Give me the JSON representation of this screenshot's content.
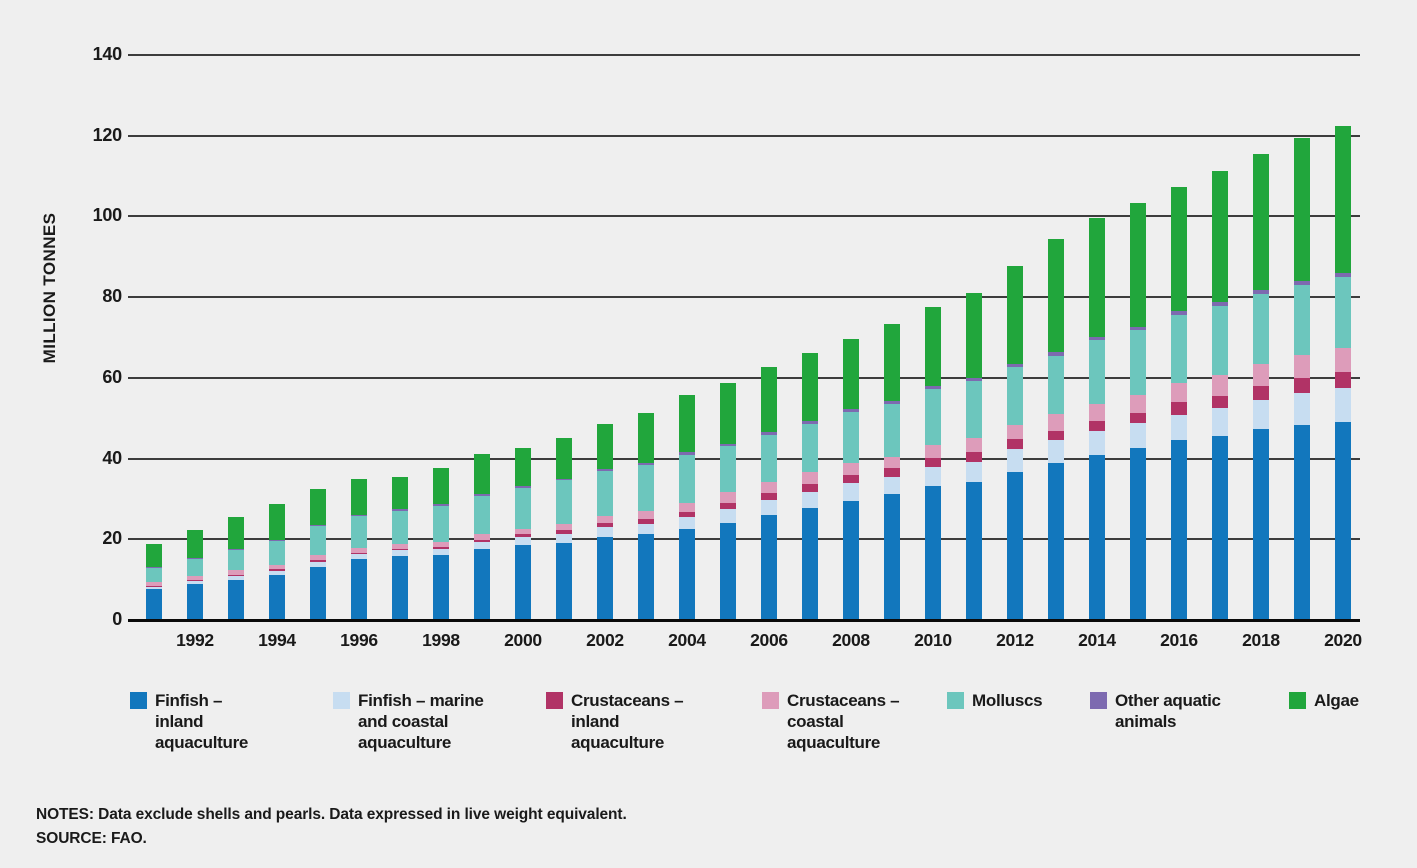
{
  "chart_data": {
    "type": "bar",
    "stacked": true,
    "title": "",
    "xlabel": "",
    "ylabel": "MILLION TONNES",
    "ylim": [
      0,
      140
    ],
    "yticks": [
      0,
      20,
      40,
      60,
      80,
      100,
      120,
      140
    ],
    "grid": "horizontal",
    "legend_position": "bottom",
    "categories": [
      1991,
      1992,
      1993,
      1994,
      1995,
      1996,
      1997,
      1998,
      1999,
      2000,
      2001,
      2002,
      2003,
      2004,
      2005,
      2006,
      2007,
      2008,
      2009,
      2010,
      2011,
      2012,
      2013,
      2014,
      2015,
      2016,
      2017,
      2018,
      2019,
      2020
    ],
    "xtick_labels": [
      "1992",
      "1994",
      "1996",
      "1998",
      "2000",
      "2002",
      "2004",
      "2006",
      "2008",
      "2010",
      "2012",
      "2014",
      "2016",
      "2018",
      "2020"
    ],
    "series": [
      {
        "name": "Finfish – inland aquaculture",
        "legend_label": "Finfish –\ninland\naquaculture",
        "color": "#1277bd",
        "values": [
          7.6,
          8.8,
          10.0,
          11.2,
          13.2,
          15.0,
          15.8,
          16.2,
          17.5,
          18.6,
          19.0,
          20.5,
          21.2,
          22.6,
          24.1,
          26.0,
          27.7,
          29.6,
          31.1,
          33.3,
          34.1,
          36.6,
          39.0,
          41.0,
          42.5,
          44.5,
          45.7,
          47.3,
          48.3,
          49.1
        ]
      },
      {
        "name": "Finfish – marine and coastal aquaculture",
        "legend_label": "Finfish – marine\nand coastal\naquaculture",
        "color": "#c7ddf1",
        "values": [
          0.7,
          0.8,
          0.9,
          1.0,
          1.2,
          1.3,
          1.5,
          1.4,
          1.8,
          1.9,
          2.3,
          2.5,
          2.7,
          2.9,
          3.3,
          3.7,
          4.0,
          4.4,
          4.3,
          4.7,
          5.1,
          5.7,
          5.5,
          5.9,
          6.3,
          6.4,
          6.8,
          7.2,
          7.9,
          8.3
        ]
      },
      {
        "name": "Crustaceans – inland aquaculture",
        "legend_label": "Crustaceans –\ninland\naquaculture",
        "color": "#b13366",
        "values": [
          0.2,
          0.25,
          0.3,
          0.35,
          0.4,
          0.4,
          0.4,
          0.4,
          0.5,
          0.7,
          1.0,
          1.0,
          1.2,
          1.3,
          1.5,
          1.8,
          2.1,
          2.0,
          2.3,
          2.2,
          2.4,
          2.5,
          2.4,
          2.5,
          2.6,
          3.0,
          3.1,
          3.5,
          3.7,
          4.0
        ]
      },
      {
        "name": "Crustaceans – coastal aquaculture",
        "legend_label": "Crustaceans –\ncoastal\naquaculture",
        "color": "#dd9cba",
        "values": [
          0.9,
          1.0,
          1.1,
          1.1,
          1.2,
          1.2,
          1.2,
          1.3,
          1.4,
          1.4,
          1.6,
          1.7,
          1.9,
          2.3,
          2.9,
          2.7,
          2.8,
          2.8,
          2.7,
          3.1,
          3.4,
          3.5,
          4.1,
          4.0,
          4.3,
          4.8,
          5.2,
          5.5,
          5.7,
          6.0
        ]
      },
      {
        "name": "Molluscs",
        "legend_label": "Molluscs",
        "color": "#6cc6bd",
        "values": [
          3.7,
          4.5,
          5.1,
          6.0,
          7.2,
          7.8,
          8.2,
          9.0,
          9.6,
          10.1,
          10.7,
          11.2,
          11.3,
          11.9,
          11.2,
          11.7,
          12.0,
          12.8,
          13.1,
          14.0,
          14.1,
          14.3,
          14.5,
          15.9,
          16.1,
          16.8,
          17.0,
          17.3,
          17.4,
          17.6
        ]
      },
      {
        "name": "Other aquatic animals",
        "legend_label": "Other aquatic\nanimals",
        "color": "#7d6ab0",
        "values": [
          0.1,
          0.1,
          0.15,
          0.2,
          0.25,
          0.3,
          0.3,
          0.35,
          0.4,
          0.4,
          0.4,
          0.4,
          0.5,
          0.6,
          0.7,
          0.7,
          0.7,
          0.7,
          0.7,
          0.6,
          0.8,
          0.8,
          0.9,
          0.8,
          0.8,
          1.0,
          1.0,
          1.0,
          1.0,
          1.1
        ]
      },
      {
        "name": "Algae",
        "legend_label": "Algae",
        "color": "#21a63c",
        "values": [
          5.6,
          6.8,
          8.0,
          8.8,
          9.1,
          9.0,
          8.0,
          9.1,
          9.9,
          9.5,
          10.1,
          11.3,
          12.5,
          14.1,
          15.0,
          16.1,
          16.9,
          17.3,
          19.1,
          19.7,
          21.1,
          24.3,
          28.0,
          29.5,
          30.7,
          30.8,
          32.4,
          33.7,
          35.4,
          36.2
        ]
      }
    ]
  },
  "footer": {
    "notes": "NOTES: Data exclude shells and pearls. Data expressed in live weight equivalent.",
    "source": "SOURCE: FAO."
  }
}
